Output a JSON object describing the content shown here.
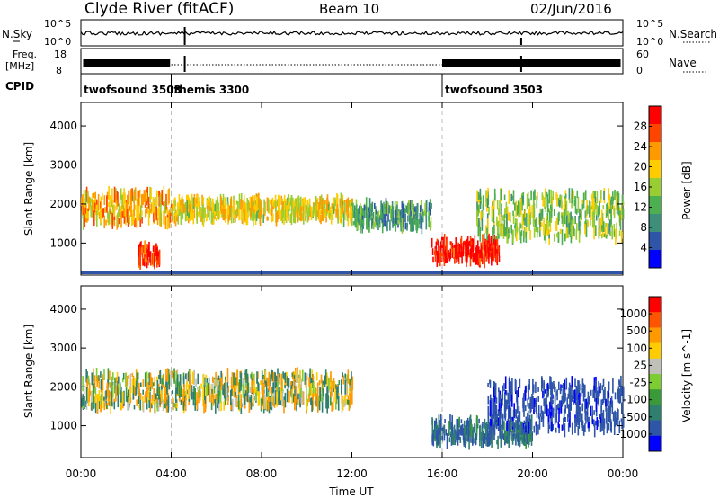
{
  "header": {
    "station": "Clyde River (fitACF)",
    "beam": "Beam 10",
    "date": "02/Jun/2016"
  },
  "noise_panel": {
    "left_label": "N.Sky",
    "right_label": "N.Search",
    "left_ticks": [
      "10^5",
      "10^0"
    ],
    "right_ticks": [
      "10^5",
      "10^0"
    ]
  },
  "freq_panel": {
    "left_label_1": "Freq.",
    "left_label_2": "[MHz]",
    "right_label": "Nave",
    "left_ticks": [
      "18",
      "8"
    ],
    "right_ticks": [
      "60",
      "0"
    ]
  },
  "cpid": {
    "label": "CPID",
    "segments": [
      {
        "name": "twofsound 3503",
        "start_hr": 0.0
      },
      {
        "name": "themis 3300",
        "start_hr": 4.0
      },
      {
        "name": "twofsound 3503",
        "start_hr": 16.0
      }
    ]
  },
  "axes": {
    "xlabel": "Time UT",
    "ylabel": "Slant Range [km]",
    "x_ticks": [
      "00:00",
      "04:00",
      "08:00",
      "12:00",
      "16:00",
      "20:00",
      "00:00"
    ],
    "y_ticks": [
      "1000",
      "2000",
      "3000",
      "4000"
    ]
  },
  "power_colorbar": {
    "label": "Power [dB]",
    "ticks": [
      "4",
      "8",
      "12",
      "16",
      "20",
      "24",
      "28"
    ],
    "colors": [
      "#0000ff",
      "#2e55a8",
      "#3d8f7a",
      "#4caf50",
      "#9acd32",
      "#ffcc00",
      "#ff9900",
      "#ff4400",
      "#ff0000"
    ]
  },
  "velocity_colorbar": {
    "label": "Velocity [m s^-1]",
    "ticks": [
      "1000",
      "500",
      "100",
      "25",
      "-25",
      "-100",
      "-500",
      "-1000"
    ],
    "colors": [
      "#0000ff",
      "#2e55a8",
      "#2f7f6f",
      "#3a9a3a",
      "#7ccd32",
      "#c0c0b8",
      "#ffcc00",
      "#ff9900",
      "#ff5500",
      "#ff0000"
    ]
  },
  "chart_data": {
    "type": "heatmap",
    "title": "Clyde River (fitACF)",
    "xlabel": "Time UT",
    "ylabel": "Slant Range [km]",
    "xlim": [
      "00:00",
      "24:00"
    ],
    "ylim": [
      180,
      4600
    ],
    "panels": [
      {
        "name": "Power [dB]",
        "clim": [
          0,
          30
        ],
        "features": [
          {
            "t_start": 0.0,
            "t_end": 4.0,
            "range_center": 1900,
            "range_width": 550,
            "level": 20
          },
          {
            "t_start": 4.0,
            "t_end": 12.0,
            "range_center": 1850,
            "range_width": 350,
            "level": 18
          },
          {
            "t_start": 12.0,
            "t_end": 15.5,
            "range_center": 1700,
            "range_width": 400,
            "level": 10
          },
          {
            "t_start": 15.5,
            "t_end": 18.5,
            "range_center": 800,
            "range_width": 350,
            "level": 28
          },
          {
            "t_start": 17.5,
            "t_end": 24.0,
            "range_center": 1700,
            "range_width": 800,
            "level": 14
          },
          {
            "t_start": 2.5,
            "t_end": 3.5,
            "range_center": 700,
            "range_width": 300,
            "level": 26
          }
        ]
      },
      {
        "name": "Velocity [m s^-1]",
        "clim": [
          -1000,
          1000
        ],
        "features": [
          {
            "t_start": 0.0,
            "t_end": 12.0,
            "range_center": 1900,
            "range_width": 600,
            "level": 0
          },
          {
            "t_start": 15.5,
            "t_end": 20.0,
            "range_center": 850,
            "range_width": 400,
            "level": 300
          },
          {
            "t_start": 18.0,
            "t_end": 24.0,
            "range_center": 1500,
            "range_width": 900,
            "level": 600
          }
        ]
      }
    ],
    "grid": false
  }
}
